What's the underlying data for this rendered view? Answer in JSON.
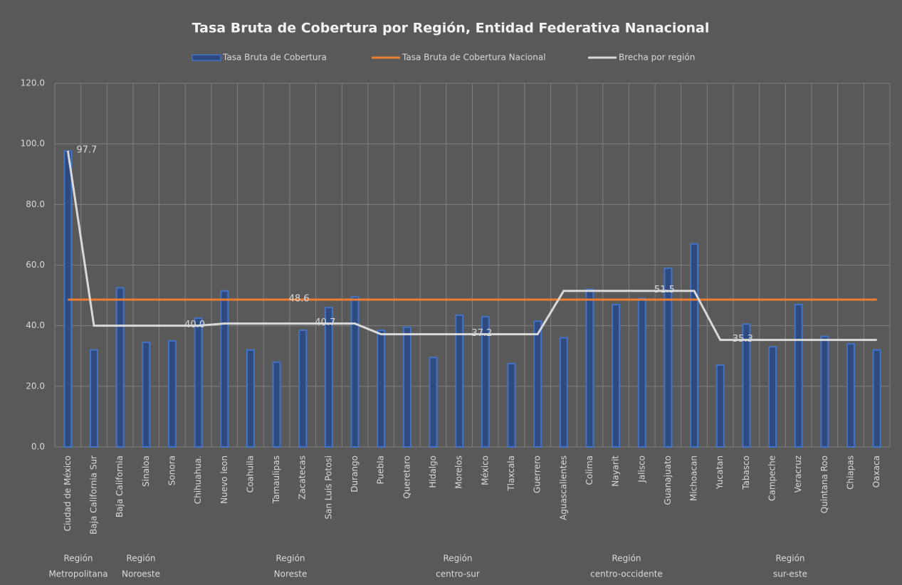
{
  "chart_data": {
    "type": "bar-line",
    "title": "Tasa Bruta de Cobertura por Región, Entidad Federativa Nanacional",
    "categories": [
      "Ciudad de México",
      "Baja California Sur",
      "Baja California",
      "Sinaloa",
      "Sonora",
      "Chihuahua.",
      "Nuevo leon",
      "Coahuila",
      "Tamaulipas",
      "Zacatecas",
      "San Luis Potosi",
      "Durango",
      "Puebla",
      "Queretaro",
      "Hidalgo",
      "Morelos",
      "México",
      "Tlaxcala",
      "Guerrero",
      "Aguascalientes",
      "Colima",
      "Nayarit",
      "Jalisco",
      "Guanajuato",
      "Michoacan",
      "Yucatan",
      "Tabasco",
      "Campeche",
      "Veracruz",
      "Quintana Roo",
      "Chiapas",
      "Oaxaca"
    ],
    "regions": [
      [
        "Región",
        "Metropolitana"
      ],
      [
        "Región",
        "Noroeste"
      ],
      [
        "Región",
        "Noreste"
      ],
      [
        "Región",
        "centro-sur"
      ],
      [
        "Región",
        "centro-occidente"
      ],
      [
        "Región",
        "sur-este"
      ]
    ],
    "series": [
      {
        "name": "Tasa Bruta de Cobertura",
        "kind": "bar",
        "color": "#4472c4",
        "values": [
          97.7,
          32,
          52.5,
          34.5,
          35,
          42.5,
          51.5,
          32,
          28,
          38.5,
          46,
          49.5,
          38.5,
          39.5,
          29.5,
          43.5,
          43,
          27.5,
          41.5,
          36,
          52,
          47,
          49,
          59,
          67,
          27,
          40.5,
          33,
          47,
          36.5,
          34,
          32
        ]
      },
      {
        "name": "Tasa  Bruta de Cobertura Nacional",
        "kind": "line",
        "color": "#ed7d31",
        "values": [
          48.6,
          48.6,
          48.6,
          48.6,
          48.6,
          48.6,
          48.6,
          48.6,
          48.6,
          48.6,
          48.6,
          48.6,
          48.6,
          48.6,
          48.6,
          48.6,
          48.6,
          48.6,
          48.6,
          48.6,
          48.6,
          48.6,
          48.6,
          48.6,
          48.6,
          48.6,
          48.6,
          48.6,
          48.6,
          48.6,
          48.6,
          48.6
        ],
        "value_labels": [
          null,
          null,
          null,
          null,
          null,
          null,
          null,
          null,
          null,
          "48.6",
          null,
          null,
          null,
          null,
          null,
          null,
          null,
          null,
          null,
          null,
          null,
          null,
          null,
          null,
          null,
          null,
          null,
          null,
          null,
          null,
          null,
          null
        ]
      },
      {
        "name": "Brecha  por región",
        "kind": "line",
        "color": "#d9d9d9",
        "values": [
          97.7,
          40,
          40,
          40,
          40,
          40,
          40.7,
          40.7,
          40.7,
          40.7,
          40.7,
          40.7,
          37.2,
          37.2,
          37.2,
          37.2,
          37.2,
          37.2,
          37.2,
          51.5,
          51.5,
          51.5,
          51.5,
          51.5,
          51.5,
          35.3,
          35.3,
          35.3,
          35.3,
          35.3,
          35.3,
          35.3
        ],
        "value_labels": [
          "97.7",
          null,
          null,
          null,
          null,
          "40.0",
          null,
          null,
          null,
          null,
          "40.7",
          null,
          null,
          null,
          null,
          null,
          "37.2",
          null,
          null,
          null,
          null,
          null,
          null,
          "51.5",
          null,
          null,
          "35.3",
          null,
          null,
          null,
          null,
          null
        ]
      }
    ],
    "ylim": [
      0,
      120
    ],
    "yticks": [
      {
        "value": 0,
        "label": "0.0"
      },
      {
        "value": 20,
        "label": "20.0"
      },
      {
        "value": 40,
        "label": "40.0"
      },
      {
        "value": 60,
        "label": "60.0"
      },
      {
        "value": 80,
        "label": "80.0"
      },
      {
        "value": 100,
        "label": "100.0"
      },
      {
        "value": 120,
        "label": "120.0"
      }
    ],
    "grid": true
  }
}
